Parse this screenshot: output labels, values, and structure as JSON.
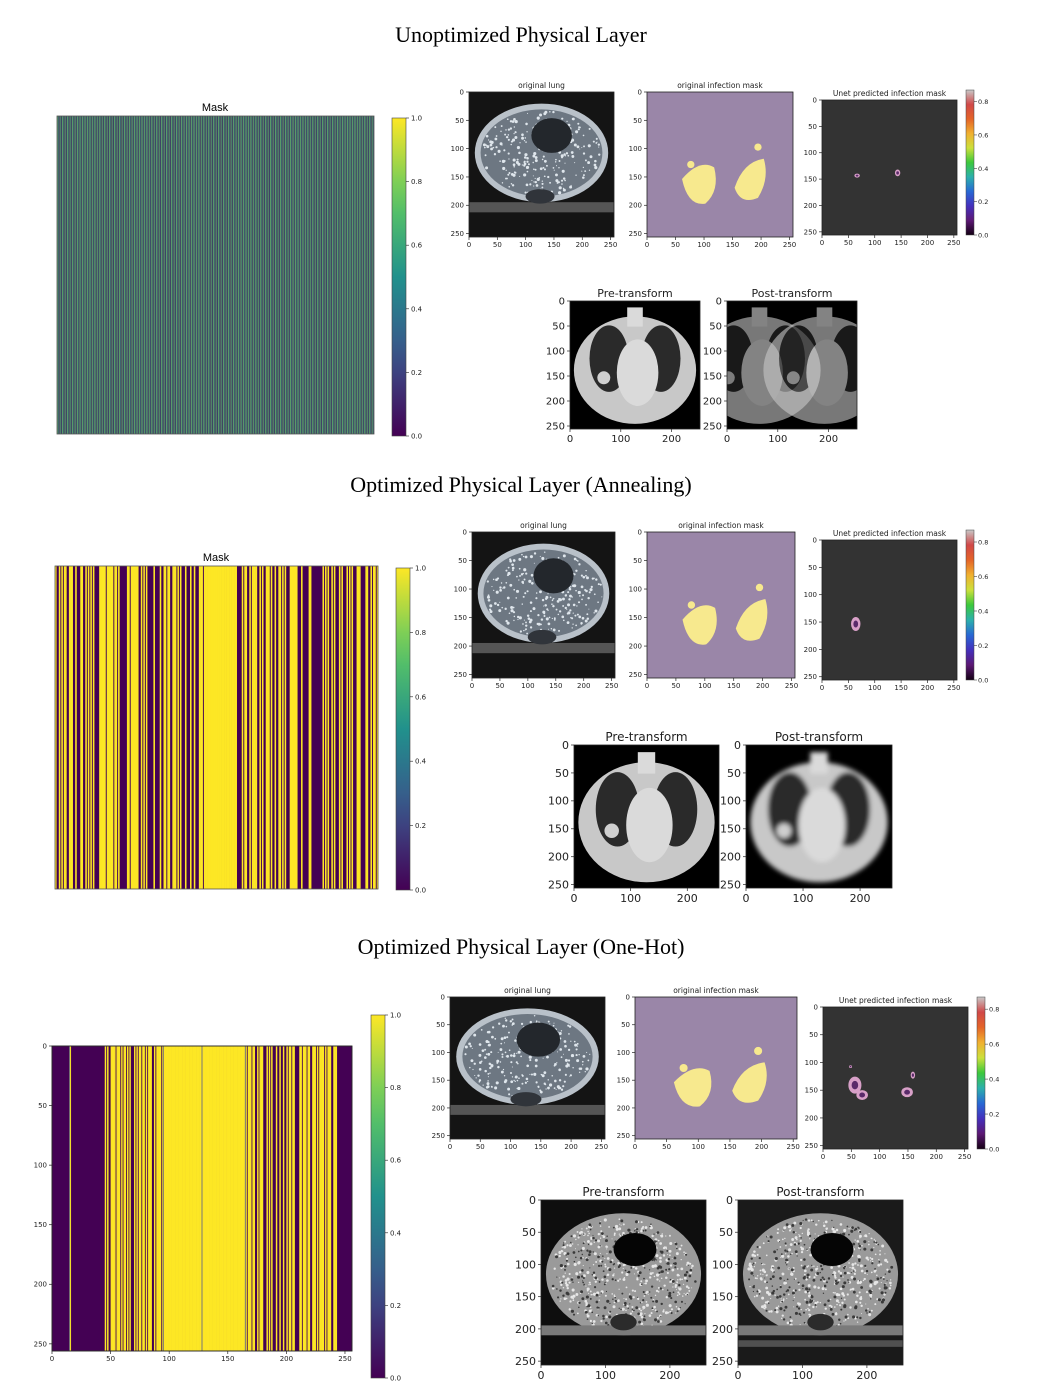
{
  "sections": [
    {
      "title": "Unoptimized Physical Layer",
      "mask": {
        "title": "Mask",
        "pattern": "fine-alternating"
      },
      "colorbar": {
        "ticks": [
          "1.0",
          "0.8",
          "0.6",
          "0.4",
          "0.2",
          "0.0"
        ]
      },
      "lung": {
        "title": "original lung",
        "yticks": [
          "0",
          "50",
          "100",
          "150",
          "200",
          "250"
        ],
        "xticks": [
          "0",
          "50",
          "100",
          "150",
          "200",
          "250"
        ]
      },
      "infection": {
        "title": "original infection mask",
        "yticks": [
          "0",
          "50",
          "100",
          "150",
          "200",
          "250"
        ],
        "xticks": [
          "0",
          "50",
          "100",
          "150",
          "200",
          "250"
        ]
      },
      "unet": {
        "title": "Unet predicted infection mask",
        "yticks": [
          "0",
          "50",
          "100",
          "150",
          "200",
          "250"
        ],
        "xticks": [
          "0",
          "50",
          "100",
          "150",
          "200",
          "250"
        ],
        "cbar_ticks": [
          "0.8",
          "0.6",
          "0.4",
          "0.2",
          "0.0"
        ]
      },
      "pre": {
        "title": "Pre-transform",
        "yticks": [
          "0",
          "50",
          "100",
          "150",
          "200",
          "250"
        ],
        "xticks": [
          "0",
          "100",
          "200"
        ]
      },
      "post": {
        "title": "Post-transform",
        "yticks": [
          "0",
          "50",
          "100",
          "150",
          "200",
          "250"
        ],
        "xticks": [
          "0",
          "100",
          "200"
        ]
      }
    },
    {
      "title": "Optimized Physical Layer (Annealing)",
      "mask": {
        "title": "Mask",
        "pattern": "random-stripes"
      },
      "colorbar": {
        "ticks": [
          "1.0",
          "0.8",
          "0.6",
          "0.4",
          "0.2",
          "0.0"
        ]
      },
      "lung": {
        "title": "original lung",
        "yticks": [
          "0",
          "50",
          "100",
          "150",
          "200",
          "250"
        ],
        "xticks": [
          "0",
          "50",
          "100",
          "150",
          "200",
          "250"
        ]
      },
      "infection": {
        "title": "original infection mask",
        "yticks": [
          "0",
          "50",
          "100",
          "150",
          "200",
          "250"
        ],
        "xticks": [
          "0",
          "50",
          "100",
          "150",
          "200",
          "250"
        ]
      },
      "unet": {
        "title": "Unet predicted infection mask",
        "yticks": [
          "0",
          "50",
          "100",
          "150",
          "200",
          "250"
        ],
        "xticks": [
          "0",
          "50",
          "100",
          "150",
          "200",
          "250"
        ],
        "cbar_ticks": [
          "0.8",
          "0.6",
          "0.4",
          "0.2",
          "0.0"
        ]
      },
      "pre": {
        "title": "Pre-transform",
        "yticks": [
          "0",
          "50",
          "100",
          "150",
          "200",
          "250"
        ],
        "xticks": [
          "0",
          "100",
          "200"
        ]
      },
      "post": {
        "title": "Post-transform",
        "yticks": [
          "0",
          "50",
          "100",
          "150",
          "200",
          "250"
        ],
        "xticks": [
          "0",
          "100",
          "200"
        ]
      }
    },
    {
      "title": "Optimized Physical Layer (One-Hot)",
      "mask": {
        "title": "",
        "pattern": "one-hot",
        "yticks": [
          "0",
          "50",
          "100",
          "150",
          "200",
          "250"
        ],
        "xticks": [
          "0",
          "50",
          "100",
          "150",
          "200",
          "250"
        ]
      },
      "colorbar": {
        "ticks": [
          "1.0",
          "0.8",
          "0.6",
          "0.4",
          "0.2",
          "0.0"
        ]
      },
      "lung": {
        "title": "original lung",
        "yticks": [
          "0",
          "50",
          "100",
          "150",
          "200",
          "250"
        ],
        "xticks": [
          "0",
          "50",
          "100",
          "150",
          "200",
          "250"
        ]
      },
      "infection": {
        "title": "original infection mask",
        "yticks": [
          "0",
          "50",
          "100",
          "150",
          "200",
          "250"
        ],
        "xticks": [
          "0",
          "50",
          "100",
          "150",
          "200",
          "250"
        ]
      },
      "unet": {
        "title": "Unet predicted infection mask",
        "yticks": [
          "0",
          "50",
          "100",
          "150",
          "200",
          "250"
        ],
        "xticks": [
          "0",
          "50",
          "100",
          "150",
          "200",
          "250"
        ],
        "cbar_ticks": [
          "0.8",
          "0.6",
          "0.4",
          "0.2",
          "0.0"
        ]
      },
      "pre": {
        "title": "Pre-transform",
        "yticks": [
          "0",
          "50",
          "100",
          "150",
          "200",
          "250"
        ],
        "xticks": [
          "0",
          "100",
          "200"
        ]
      },
      "post": {
        "title": "Post-transform",
        "yticks": [
          "0",
          "50",
          "100",
          "150",
          "200",
          "250"
        ],
        "xticks": [
          "0",
          "100",
          "200"
        ]
      }
    }
  ],
  "colors": {
    "viridis_dark": "#440154",
    "viridis_light": "#fde725",
    "infection_bg": "#9a86a8",
    "infection_fg": "#f7e98e",
    "unet_bg": "#333333"
  }
}
